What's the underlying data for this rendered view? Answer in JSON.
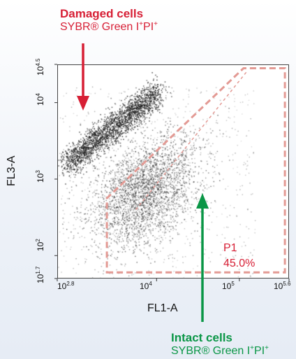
{
  "colors": {
    "damaged": "#d71f35",
    "intact": "#0a9646",
    "gate": "#e39a94",
    "dots": "#1e1e1e"
  },
  "annotations": {
    "damaged": {
      "title": "Damaged cells",
      "reagent": "SYBR® Green I",
      "marker_1": "+",
      "reagent_2": "PI",
      "marker_2": "+"
    },
    "intact": {
      "title": "Intact cells",
      "reagent": "SYBR® Green I",
      "marker_1": "+",
      "reagent_2": "PI",
      "marker_2": "+"
    }
  },
  "chart_data": {
    "type": "scatter",
    "title": "",
    "xlabel": "FL1-A",
    "ylabel": "FL3-A",
    "x_scale": "log",
    "y_scale": "log",
    "xlim_log10": [
      2.8,
      5.6
    ],
    "ylim_log10": [
      1.7,
      4.5
    ],
    "x_ticks": [
      {
        "base": "10",
        "exp": "2.8",
        "log10": 2.8
      },
      {
        "base": "10",
        "exp": "4",
        "log10": 4
      },
      {
        "base": "10",
        "exp": "5",
        "log10": 5
      },
      {
        "base": "10",
        "exp": "5.6",
        "log10": 5.6
      }
    ],
    "y_ticks": [
      {
        "base": "10",
        "exp": "1.7",
        "log10": 1.7
      },
      {
        "base": "10",
        "exp": "2",
        "log10": 2
      },
      {
        "base": "10",
        "exp": "3",
        "log10": 3
      },
      {
        "base": "10",
        "exp": "4",
        "log10": 4
      },
      {
        "base": "10",
        "exp": "4.5",
        "log10": 4.5
      }
    ],
    "gate": {
      "name": "P1",
      "percent": "45.0%",
      "polygon_log10": [
        [
          3.4,
          1.78
        ],
        [
          5.55,
          1.78
        ],
        [
          5.55,
          4.45
        ],
        [
          5.05,
          4.45
        ],
        [
          3.4,
          2.75
        ]
      ]
    },
    "populations": [
      {
        "name": "Damaged cells",
        "center_log10": [
          3.45,
          3.55
        ],
        "spread": "diagonal band",
        "points": 2300
      },
      {
        "name": "Intact cells",
        "center_log10": [
          3.9,
          2.95
        ],
        "spread": "diffuse cloud",
        "points": 2900
      }
    ],
    "grid": false,
    "legend": "none"
  }
}
